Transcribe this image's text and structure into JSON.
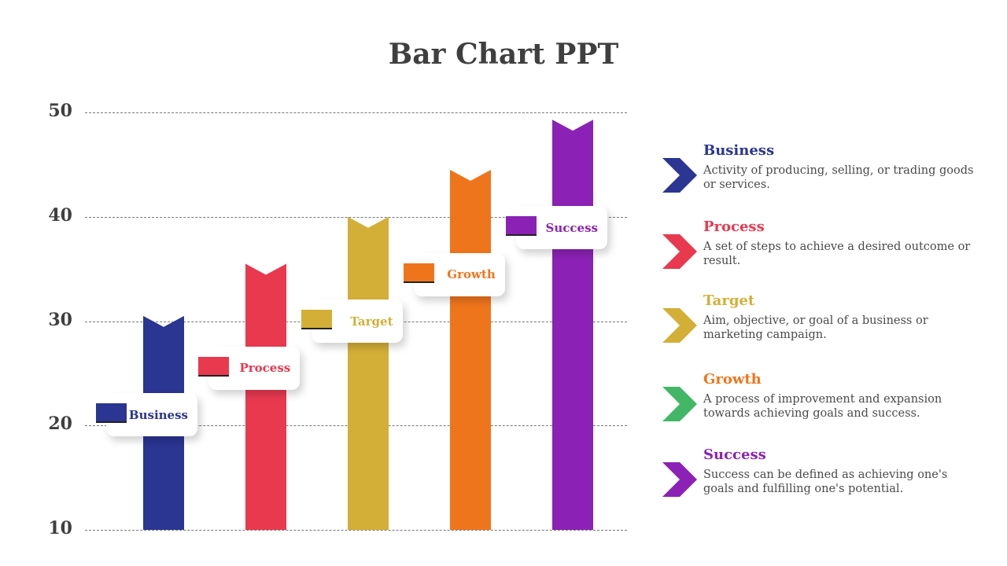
{
  "title": "Bar Chart PPT",
  "chart_data": {
    "type": "bar",
    "title": "Bar Chart PPT",
    "categories": [
      "Business",
      "Process",
      "Target",
      "Growth",
      "Success"
    ],
    "values": [
      30.5,
      35.5,
      40,
      44.5,
      49.3
    ],
    "colors": [
      "#2b3592",
      "#e8394f",
      "#d4af37",
      "#ef751c",
      "#8b22b5"
    ],
    "ylim": [
      10,
      50
    ],
    "yticks": [
      "10",
      "20",
      "30",
      "40",
      "50"
    ],
    "grid": true,
    "xlabel": "",
    "ylabel": ""
  },
  "legend": [
    {
      "title": "Business",
      "desc": "Activity of producing, selling, or trading goods or services.",
      "color": "#2b3592",
      "arrow": "#2b3592"
    },
    {
      "title": "Process",
      "desc": "A set of steps to achieve a desired outcome or result.",
      "color": "#e8394f",
      "arrow": "#e8394f"
    },
    {
      "title": "Target",
      "desc": "Aim, objective, or goal of a business or marketing campaign.",
      "color": "#d4af37",
      "arrow": "#d4af37"
    },
    {
      "title": "Growth",
      "desc": "A process of improvement and expansion towards achieving goals and success.",
      "color": "#ef751c",
      "arrow": "#42b866"
    },
    {
      "title": "Success",
      "desc": "Success can be defined as achieving one's goals and fulfilling one's potential.",
      "color": "#8b22b5",
      "arrow": "#8b22b5"
    }
  ]
}
